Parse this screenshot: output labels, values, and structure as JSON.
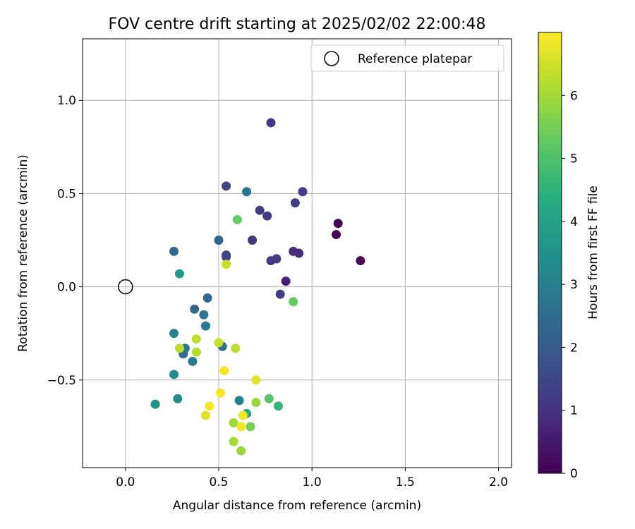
{
  "chart_data": {
    "type": "scatter",
    "title": "FOV centre drift starting at 2025/02/02 22:00:48",
    "xlabel": "Angular distance from reference (arcmin)",
    "ylabel": "Rotation from reference (arcmin)",
    "xlim": [
      -0.23,
      2.07
    ],
    "ylim": [
      -0.97,
      1.33
    ],
    "xticks": [
      0.0,
      0.5,
      1.0,
      1.5,
      2.0
    ],
    "xtick_labels": [
      "0.0",
      "0.5",
      "1.0",
      "1.5",
      "2.0"
    ],
    "yticks": [
      -0.5,
      0.0,
      0.5,
      1.0
    ],
    "ytick_labels": [
      "−0.5",
      "0.0",
      "0.5",
      "1.0"
    ],
    "grid": true,
    "legend": {
      "placement": "top-right",
      "entries": [
        "Reference platepar"
      ]
    },
    "reference_point": {
      "x": 0.0,
      "y": 0.0
    },
    "colorbar": {
      "label": "Hours from first FF file",
      "colormap": "viridis",
      "range": [
        0,
        7
      ],
      "ticks": [
        0,
        1,
        2,
        3,
        4,
        5,
        6
      ],
      "tick_labels": [
        "0",
        "1",
        "2",
        "3",
        "4",
        "5",
        "6"
      ]
    },
    "series": [
      {
        "points": [
          {
            "x": 1.14,
            "y": 0.34,
            "c": 0.05
          },
          {
            "x": 1.13,
            "y": 0.28,
            "c": 0.1
          },
          {
            "x": 1.26,
            "y": 0.14,
            "c": 0.1
          },
          {
            "x": 0.86,
            "y": 0.03,
            "c": 0.6
          },
          {
            "x": 0.9,
            "y": 0.19,
            "c": 0.9
          },
          {
            "x": 0.93,
            "y": 0.18,
            "c": 0.9
          },
          {
            "x": 0.78,
            "y": 0.88,
            "c": 1.2
          },
          {
            "x": 0.95,
            "y": 0.51,
            "c": 1.3
          },
          {
            "x": 0.91,
            "y": 0.45,
            "c": 1.3
          },
          {
            "x": 0.72,
            "y": 0.41,
            "c": 1.2
          },
          {
            "x": 0.76,
            "y": 0.38,
            "c": 1.2
          },
          {
            "x": 0.68,
            "y": 0.25,
            "c": 1.1
          },
          {
            "x": 0.81,
            "y": 0.15,
            "c": 1.2
          },
          {
            "x": 0.78,
            "y": 0.14,
            "c": 1.2
          },
          {
            "x": 0.83,
            "y": -0.04,
            "c": 1.3
          },
          {
            "x": 0.54,
            "y": 0.54,
            "c": 1.4
          },
          {
            "x": 0.54,
            "y": 0.17,
            "c": 1.4
          },
          {
            "x": 0.54,
            "y": 0.16,
            "c": 1.4
          },
          {
            "x": 0.5,
            "y": 0.25,
            "c": 2.2
          },
          {
            "x": 0.26,
            "y": 0.19,
            "c": 2.3
          },
          {
            "x": 0.44,
            "y": -0.06,
            "c": 2.3
          },
          {
            "x": 0.37,
            "y": -0.12,
            "c": 2.3
          },
          {
            "x": 0.52,
            "y": -0.32,
            "c": 2.4
          },
          {
            "x": 0.31,
            "y": -0.36,
            "c": 2.4
          },
          {
            "x": 0.65,
            "y": 0.51,
            "c": 2.7
          },
          {
            "x": 0.42,
            "y": -0.15,
            "c": 2.7
          },
          {
            "x": 0.43,
            "y": -0.21,
            "c": 2.8
          },
          {
            "x": 0.32,
            "y": -0.33,
            "c": 2.8
          },
          {
            "x": 0.36,
            "y": -0.4,
            "c": 2.9
          },
          {
            "x": 0.26,
            "y": -0.25,
            "c": 3.0
          },
          {
            "x": 0.61,
            "y": -0.61,
            "c": 3.0
          },
          {
            "x": 0.26,
            "y": -0.47,
            "c": 3.3
          },
          {
            "x": 0.28,
            "y": -0.6,
            "c": 3.4
          },
          {
            "x": 0.16,
            "y": -0.63,
            "c": 3.5
          },
          {
            "x": 0.29,
            "y": 0.07,
            "c": 3.8
          },
          {
            "x": 0.65,
            "y": -0.68,
            "c": 4.2
          },
          {
            "x": 0.82,
            "y": -0.64,
            "c": 4.6
          },
          {
            "x": 0.77,
            "y": -0.6,
            "c": 5.1
          },
          {
            "x": 0.6,
            "y": 0.36,
            "c": 5.3
          },
          {
            "x": 0.9,
            "y": -0.08,
            "c": 5.3
          },
          {
            "x": 0.67,
            "y": -0.75,
            "c": 5.5
          },
          {
            "x": 0.7,
            "y": -0.62,
            "c": 5.9
          },
          {
            "x": 0.58,
            "y": -0.73,
            "c": 6.0
          },
          {
            "x": 0.58,
            "y": -0.83,
            "c": 6.0
          },
          {
            "x": 0.62,
            "y": -0.88,
            "c": 5.9
          },
          {
            "x": 0.38,
            "y": -0.35,
            "c": 6.2
          },
          {
            "x": 0.38,
            "y": -0.28,
            "c": 6.3
          },
          {
            "x": 0.29,
            "y": -0.33,
            "c": 6.3
          },
          {
            "x": 0.59,
            "y": -0.33,
            "c": 6.3
          },
          {
            "x": 0.5,
            "y": -0.3,
            "c": 6.4
          },
          {
            "x": 0.54,
            "y": 0.12,
            "c": 6.4
          },
          {
            "x": 0.7,
            "y": -0.5,
            "c": 6.7
          },
          {
            "x": 0.43,
            "y": -0.69,
            "c": 6.7
          },
          {
            "x": 0.53,
            "y": -0.45,
            "c": 6.9
          },
          {
            "x": 0.51,
            "y": -0.57,
            "c": 6.9
          },
          {
            "x": 0.45,
            "y": -0.64,
            "c": 6.9
          },
          {
            "x": 0.62,
            "y": -0.75,
            "c": 6.9
          },
          {
            "x": 0.63,
            "y": -0.69,
            "c": 6.9
          }
        ]
      }
    ]
  }
}
